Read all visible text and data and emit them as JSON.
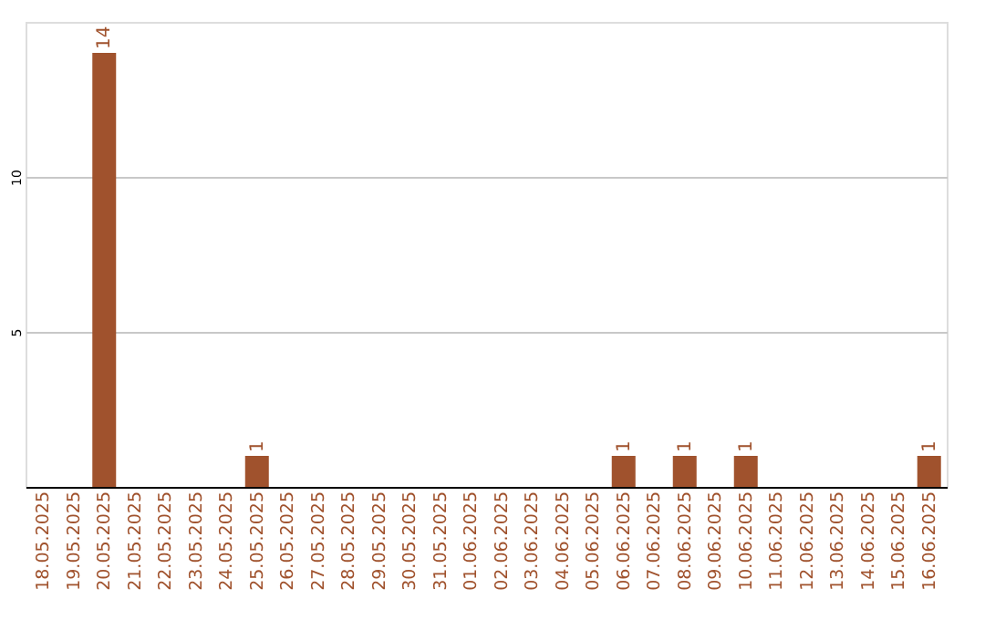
{
  "chart_data": {
    "type": "bar",
    "categories": [
      "18.05.2025",
      "19.05.2025",
      "20.05.2025",
      "21.05.2025",
      "22.05.2025",
      "23.05.2025",
      "24.05.2025",
      "25.05.2025",
      "26.05.2025",
      "27.05.2025",
      "28.05.2025",
      "29.05.2025",
      "30.05.2025",
      "31.05.2025",
      "01.06.2025",
      "02.06.2025",
      "03.06.2025",
      "04.06.2025",
      "05.06.2025",
      "06.06.2025",
      "07.06.2025",
      "08.06.2025",
      "09.06.2025",
      "10.06.2025",
      "11.06.2025",
      "12.06.2025",
      "13.06.2025",
      "14.06.2025",
      "15.06.2025",
      "16.06.2025"
    ],
    "values": [
      0,
      0,
      14,
      0,
      0,
      0,
      0,
      1,
      0,
      0,
      0,
      0,
      0,
      0,
      0,
      0,
      0,
      0,
      0,
      1,
      0,
      1,
      0,
      1,
      0,
      0,
      0,
      0,
      0,
      1
    ],
    "value_labels": [
      null,
      null,
      "14",
      null,
      null,
      null,
      null,
      "1",
      null,
      null,
      null,
      null,
      null,
      null,
      null,
      null,
      null,
      null,
      null,
      "1",
      null,
      "1",
      null,
      "1",
      null,
      null,
      null,
      null,
      null,
      "1"
    ],
    "color": "#a0522d",
    "ylim": [
      0,
      15
    ],
    "yticks": [
      5,
      10
    ],
    "grid": "y"
  }
}
